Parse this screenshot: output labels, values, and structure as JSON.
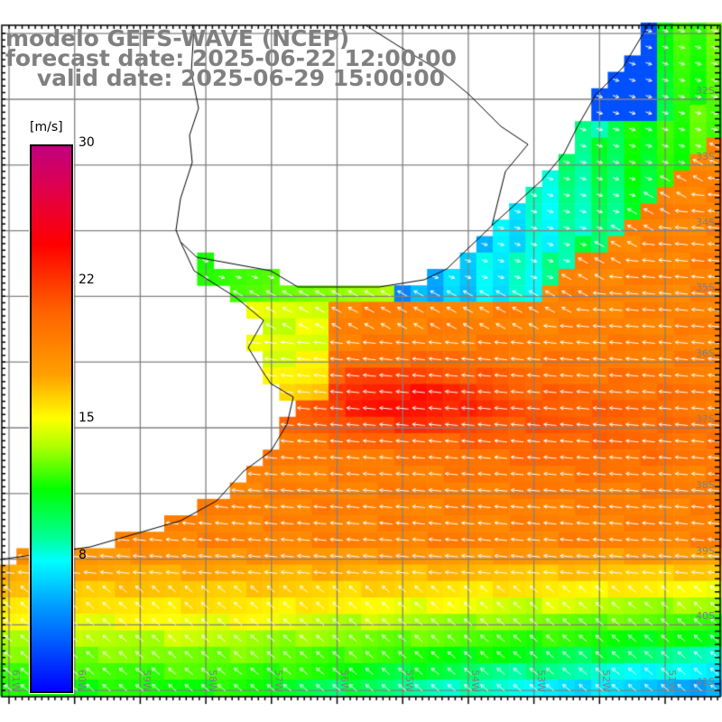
{
  "title": {
    "line1": "modelo GEFS-WAVE (NCEP)",
    "line2": "forecast date: 2025-06-22 12:00:00",
    "line3": "    valid date: 2025-06-29 15:00:00"
  },
  "colorbar": {
    "unit": "[m/s]",
    "ticks": [
      "30",
      "22",
      "15",
      "8"
    ],
    "colors": [
      "#c0007f",
      "#ff0000",
      "#ff8000",
      "#ffff00",
      "#00ff00",
      "#00ffff",
      "#0000ff"
    ]
  },
  "lon_labels": [
    "61W",
    "60W",
    "59W",
    "58W",
    "57W",
    "56W",
    "55W",
    "54W",
    "53W",
    "52W",
    "51W"
  ],
  "lat_labels": [
    "32S",
    "33S",
    "34S",
    "35S",
    "36S",
    "37S",
    "38S",
    "39S",
    "40S",
    "41S"
  ],
  "field": {
    "variable": "wind speed",
    "units": "m/s",
    "min": 0,
    "max": 30
  }
}
